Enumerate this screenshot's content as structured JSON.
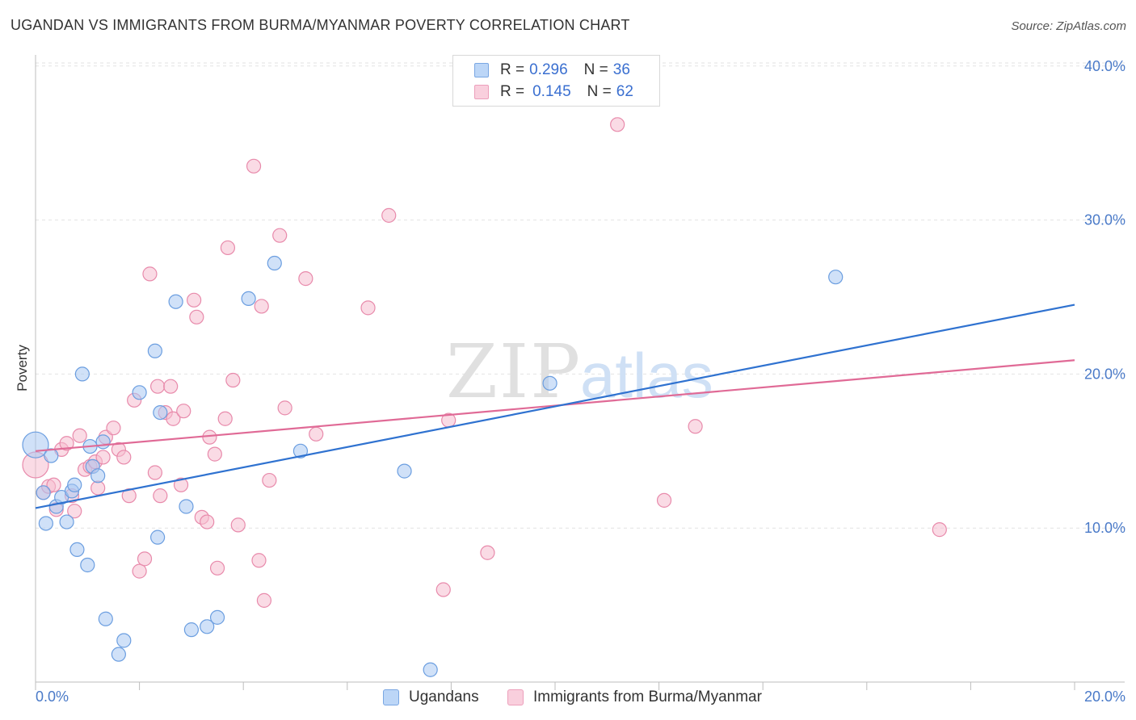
{
  "title": "UGANDAN VS IMMIGRANTS FROM BURMA/MYANMAR POVERTY CORRELATION CHART",
  "source": "Source: ZipAtlas.com",
  "watermark": {
    "zip": "ZIP",
    "atlas": "atlas"
  },
  "legend": {
    "rows": [
      {
        "r_label": "R =",
        "r_value": "0.296",
        "n_label": "N =",
        "n_value": "36"
      },
      {
        "r_label": "R =",
        "r_value": "0.145",
        "n_label": "N =",
        "n_value": "62"
      }
    ]
  },
  "bottom_legend": [
    "Ugandans",
    "Immigrants from Burma/Myanmar"
  ],
  "colors": {
    "blue_fill": "#a9c9f3",
    "blue_stroke": "#6b9ee0",
    "blue_line": "#2f72d0",
    "pink_fill": "#f6bdd0",
    "pink_stroke": "#e88aab",
    "pink_line": "#e06a96",
    "grid": "#e2e2e2",
    "axis_text": "#4a7ac8"
  },
  "chart_data": {
    "type": "scatter",
    "title": "UGANDAN VS IMMIGRANTS FROM BURMA/MYANMAR POVERTY CORRELATION CHART",
    "xlabel": "",
    "ylabel": "Poverty",
    "xlim": [
      0,
      20
    ],
    "ylim": [
      0,
      41
    ],
    "x_tick_labels": [
      "0.0%",
      "20.0%"
    ],
    "y_ticks": [
      10,
      20,
      30,
      40
    ],
    "y_tick_labels": [
      "10.0%",
      "20.0%",
      "30.0%",
      "40.0%"
    ],
    "grid": true,
    "series": [
      {
        "name": "Ugandans",
        "r": 0.296,
        "n": 36,
        "trend": {
          "x": [
            0,
            20
          ],
          "y": [
            11.3,
            24.5
          ]
        },
        "points": [
          {
            "x": 0.0,
            "y": 15.4,
            "big": true
          },
          {
            "x": 0.15,
            "y": 12.3
          },
          {
            "x": 0.3,
            "y": 14.7
          },
          {
            "x": 0.2,
            "y": 10.3
          },
          {
            "x": 0.4,
            "y": 11.4
          },
          {
            "x": 0.5,
            "y": 12.0
          },
          {
            "x": 0.6,
            "y": 10.4
          },
          {
            "x": 0.7,
            "y": 12.4
          },
          {
            "x": 0.75,
            "y": 12.8
          },
          {
            "x": 0.8,
            "y": 8.6
          },
          {
            "x": 0.9,
            "y": 20.0
          },
          {
            "x": 1.0,
            "y": 7.6
          },
          {
            "x": 1.05,
            "y": 15.3
          },
          {
            "x": 1.1,
            "y": 14.0
          },
          {
            "x": 1.2,
            "y": 13.4
          },
          {
            "x": 1.3,
            "y": 15.6
          },
          {
            "x": 1.35,
            "y": 4.1
          },
          {
            "x": 1.6,
            "y": 1.8
          },
          {
            "x": 1.7,
            "y": 2.7
          },
          {
            "x": 2.0,
            "y": 18.8
          },
          {
            "x": 2.3,
            "y": 21.5
          },
          {
            "x": 2.35,
            "y": 9.4
          },
          {
            "x": 2.4,
            "y": 17.5
          },
          {
            "x": 2.7,
            "y": 24.7
          },
          {
            "x": 2.9,
            "y": 11.4
          },
          {
            "x": 3.0,
            "y": 3.4
          },
          {
            "x": 3.3,
            "y": 3.6
          },
          {
            "x": 3.5,
            "y": 4.2
          },
          {
            "x": 4.1,
            "y": 24.9
          },
          {
            "x": 4.6,
            "y": 27.2
          },
          {
            "x": 5.1,
            "y": 15.0
          },
          {
            "x": 7.1,
            "y": 13.7
          },
          {
            "x": 7.6,
            "y": 0.8
          },
          {
            "x": 9.9,
            "y": 19.4
          },
          {
            "x": 15.4,
            "y": 26.3
          }
        ]
      },
      {
        "name": "Immigrants from Burma/Myanmar",
        "r": 0.145,
        "n": 62,
        "trend": {
          "x": [
            0,
            20
          ],
          "y": [
            15.0,
            20.9
          ]
        },
        "points": [
          {
            "x": 0.0,
            "y": 14.1,
            "big": true
          },
          {
            "x": 0.15,
            "y": 12.3
          },
          {
            "x": 0.25,
            "y": 12.7
          },
          {
            "x": 0.35,
            "y": 12.8
          },
          {
            "x": 0.4,
            "y": 11.2
          },
          {
            "x": 0.5,
            "y": 15.1
          },
          {
            "x": 0.6,
            "y": 15.5
          },
          {
            "x": 0.7,
            "y": 12.1
          },
          {
            "x": 0.75,
            "y": 11.1
          },
          {
            "x": 0.85,
            "y": 16.0
          },
          {
            "x": 0.95,
            "y": 13.8
          },
          {
            "x": 1.05,
            "y": 14.0
          },
          {
            "x": 1.15,
            "y": 14.3
          },
          {
            "x": 1.2,
            "y": 12.6
          },
          {
            "x": 1.3,
            "y": 14.6
          },
          {
            "x": 1.35,
            "y": 15.9
          },
          {
            "x": 1.5,
            "y": 16.5
          },
          {
            "x": 1.6,
            "y": 15.1
          },
          {
            "x": 1.7,
            "y": 14.6
          },
          {
            "x": 1.8,
            "y": 12.1
          },
          {
            "x": 1.9,
            "y": 18.3
          },
          {
            "x": 2.0,
            "y": 7.2
          },
          {
            "x": 2.1,
            "y": 8.0
          },
          {
            "x": 2.2,
            "y": 26.5
          },
          {
            "x": 2.3,
            "y": 13.6
          },
          {
            "x": 2.35,
            "y": 19.2
          },
          {
            "x": 2.4,
            "y": 12.1
          },
          {
            "x": 2.5,
            "y": 17.5
          },
          {
            "x": 2.6,
            "y": 19.2
          },
          {
            "x": 2.65,
            "y": 17.1
          },
          {
            "x": 2.8,
            "y": 12.8
          },
          {
            "x": 2.85,
            "y": 17.6
          },
          {
            "x": 3.05,
            "y": 24.8
          },
          {
            "x": 3.1,
            "y": 23.7
          },
          {
            "x": 3.2,
            "y": 10.7
          },
          {
            "x": 3.3,
            "y": 10.4
          },
          {
            "x": 3.35,
            "y": 15.9
          },
          {
            "x": 3.45,
            "y": 14.8
          },
          {
            "x": 3.5,
            "y": 7.4
          },
          {
            "x": 3.65,
            "y": 17.1
          },
          {
            "x": 3.7,
            "y": 28.2
          },
          {
            "x": 3.8,
            "y": 19.6
          },
          {
            "x": 3.9,
            "y": 10.2
          },
          {
            "x": 4.2,
            "y": 33.5
          },
          {
            "x": 4.3,
            "y": 7.9
          },
          {
            "x": 4.35,
            "y": 24.4
          },
          {
            "x": 4.4,
            "y": 5.3
          },
          {
            "x": 4.5,
            "y": 13.1
          },
          {
            "x": 4.7,
            "y": 29.0
          },
          {
            "x": 4.8,
            "y": 17.8
          },
          {
            "x": 5.2,
            "y": 26.2
          },
          {
            "x": 5.4,
            "y": 16.1
          },
          {
            "x": 6.4,
            "y": 24.3
          },
          {
            "x": 6.8,
            "y": 30.3
          },
          {
            "x": 7.85,
            "y": 6.0
          },
          {
            "x": 7.95,
            "y": 17.0
          },
          {
            "x": 8.7,
            "y": 8.4
          },
          {
            "x": 11.2,
            "y": 36.2
          },
          {
            "x": 12.1,
            "y": 11.8
          },
          {
            "x": 12.7,
            "y": 16.6
          },
          {
            "x": 17.4,
            "y": 9.9
          }
        ]
      }
    ]
  }
}
